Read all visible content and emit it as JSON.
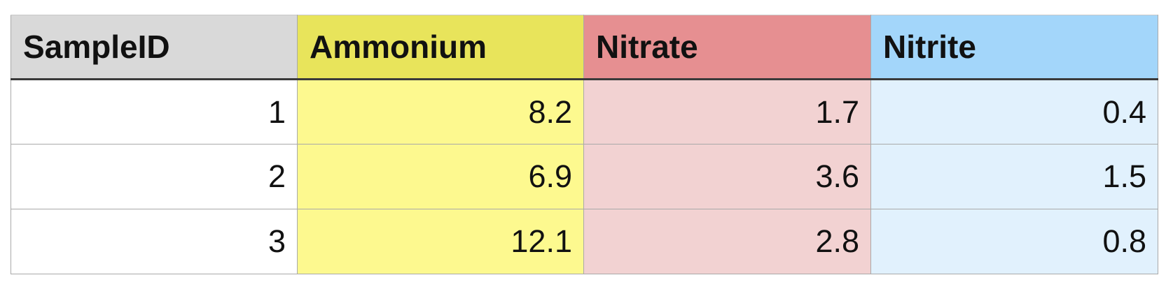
{
  "table": {
    "columns": [
      {
        "key": "sample_id",
        "label": "SampleID",
        "header_color": "#d9d9d9",
        "cell_color": "#ffffff"
      },
      {
        "key": "ammonium",
        "label": "Ammonium",
        "header_color": "#e8e45b",
        "cell_color": "#fdf98f"
      },
      {
        "key": "nitrate",
        "label": "Nitrate",
        "header_color": "#e68f91",
        "cell_color": "#f2d2d2"
      },
      {
        "key": "nitrite",
        "label": "Nitrite",
        "header_color": "#a3d6fa",
        "cell_color": "#e1f1fd"
      }
    ],
    "rows": [
      [
        "1",
        "8.2",
        "1.7",
        "0.4"
      ],
      [
        "2",
        "6.9",
        "3.6",
        "1.5"
      ],
      [
        "3",
        "12.1",
        "2.8",
        "0.8"
      ]
    ]
  }
}
